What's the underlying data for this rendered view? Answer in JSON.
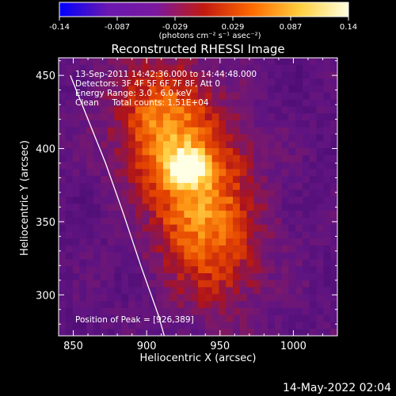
{
  "chart_data": {
    "type": "heatmap",
    "title": "Reconstructed RHESSI Image",
    "colorbar": {
      "min": -0.14,
      "max": 0.14,
      "ticks": [
        "-0.14",
        "-0.087",
        "-0.029",
        "0.029",
        "0.087",
        "0.14"
      ],
      "unit_label": "(photons cm⁻² s⁻¹ asec⁻²)",
      "colors": [
        "#0000ff",
        "#6a18b0",
        "#7a18a0",
        "#c21a10",
        "#ff6a00",
        "#ffd040",
        "#ffffe0"
      ]
    },
    "xlabel": "Heliocentric X (arcsec)",
    "ylabel": "Heliocentric Y (arcsec)",
    "xlim": [
      840,
      1030
    ],
    "ylim": [
      272,
      462
    ],
    "xticks": [
      850,
      900,
      950,
      1000
    ],
    "yticks": [
      300,
      350,
      400,
      450
    ],
    "annotations": [
      "13-Sep-2011 14:42:36.000 to 14:44:48.000",
      "Detectors: 3F 4F 5F 6F 7F 8F, Att 0",
      "Energy Range: 3.0 - 6.0 keV",
      "Clean     Total counts: 1.51E+04",
      "Position of Peak = [926,389]"
    ],
    "peak": [
      926,
      389
    ],
    "limb_curve_x": [
      848,
      860,
      872,
      884,
      896,
      908,
      912
    ],
    "limb_curve_y": [
      450,
      420,
      390,
      356,
      320,
      286,
      272
    ]
  },
  "footer": {
    "timestamp": "14-May-2022 02:04"
  }
}
